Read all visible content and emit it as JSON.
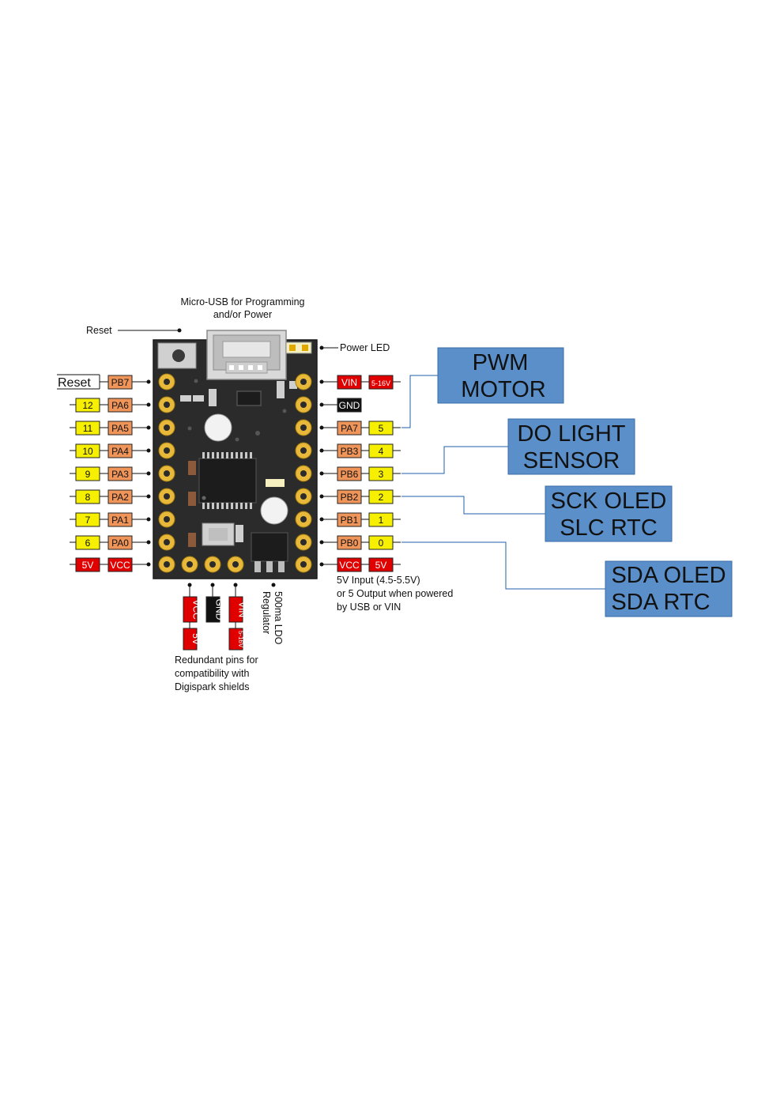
{
  "colors": {
    "pcb": "#2b2b2b",
    "pad_gold": "#e8b83a",
    "orange_tag": "#f0955a",
    "yellow_tag": "#f6f000",
    "red_tag": "#e00000",
    "black_tag": "#111111",
    "blue_box": "#5b8fc9",
    "blue_line": "#1f5fa8"
  },
  "notes": {
    "usb_line1": "Micro-USB for Programming",
    "usb_line2": "and/or Power",
    "reset": "Reset",
    "power_led": "Power LED",
    "vcc_line1": "5V Input (4.5-5.5V)",
    "vcc_line2": "or 5 Output when powered",
    "vcc_line3": "by USB or VIN",
    "ldo_line1": "500ma LDO",
    "ldo_line2": "Regulator",
    "redundant_line1": "Redundant pins for",
    "redundant_line2": "compatibility with",
    "redundant_line3": "Digispark shields"
  },
  "left_pins": [
    {
      "num": "Reset",
      "port": "PB7"
    },
    {
      "num": "12",
      "port": "PA6"
    },
    {
      "num": "11",
      "port": "PA5"
    },
    {
      "num": "10",
      "port": "PA4"
    },
    {
      "num": "9",
      "port": "PA3"
    },
    {
      "num": "8",
      "port": "PA2"
    },
    {
      "num": "7",
      "port": "PA1"
    },
    {
      "num": "6",
      "port": "PA0"
    },
    {
      "num": "5V",
      "port": "VCC"
    }
  ],
  "right_pins": [
    {
      "port": "VIN",
      "num": "5-16V"
    },
    {
      "port": "GND",
      "num": ""
    },
    {
      "port": "PA7",
      "num": "5"
    },
    {
      "port": "PB3",
      "num": "4"
    },
    {
      "port": "PB6",
      "num": "3"
    },
    {
      "port": "PB2",
      "num": "2"
    },
    {
      "port": "PB1",
      "num": "1"
    },
    {
      "port": "PB0",
      "num": "0"
    },
    {
      "port": "VCC",
      "num": "5V"
    }
  ],
  "bottom_pins": [
    {
      "label": "VCC",
      "sub": "5V"
    },
    {
      "label": "GND",
      "sub": ""
    },
    {
      "label": "VIN",
      "sub": "5-16V"
    }
  ],
  "callouts": [
    {
      "line1": "PWM",
      "line2": "MOTOR"
    },
    {
      "line1": "DO LIGHT",
      "line2": "SENSOR"
    },
    {
      "line1": "SCK OLED",
      "line2": "SLC RTC"
    },
    {
      "line1": "SDA OLED",
      "line2": "SDA RTC"
    }
  ]
}
